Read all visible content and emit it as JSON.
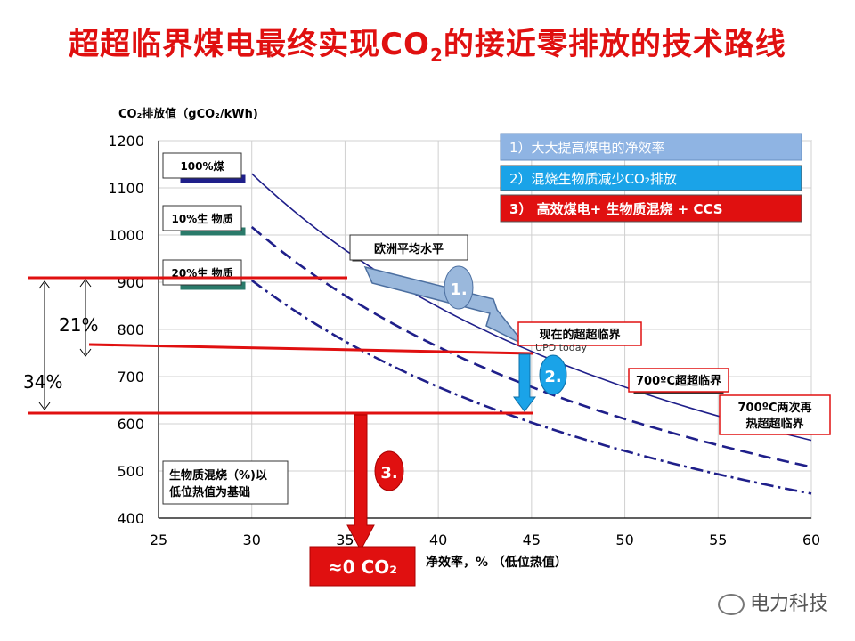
{
  "title": {
    "main": "超超临界煤电最终实现CO",
    "sub": "2",
    "tail": "的接近零排放的技术路线"
  },
  "chart_data": {
    "type": "line",
    "ylabel": "CO₂排放值（gCO₂/kWh)",
    "xlabel": "净效率，% （低位热值）",
    "xlim": [
      25,
      60
    ],
    "ylim": [
      400,
      1200
    ],
    "x_ticks": [
      "25",
      "30",
      "35",
      "40",
      "45",
      "50",
      "55",
      "60"
    ],
    "y_ticks": [
      "400",
      "500",
      "600",
      "700",
      "800",
      "900",
      "1000",
      "1100",
      "1200"
    ],
    "grid": true,
    "x": [
      30,
      35,
      40,
      45,
      50,
      55,
      60
    ],
    "series": [
      {
        "name": "100%煤",
        "style": "solid",
        "values": [
          1130,
          969,
          848,
          753,
          678,
          616,
          565
        ]
      },
      {
        "name": "10%生 物质",
        "style": "dashed",
        "values": [
          1017,
          872,
          763,
          678,
          610,
          555,
          508
        ]
      },
      {
        "name": "20%生 物质",
        "style": "dashdot",
        "values": [
          904,
          775,
          678,
          603,
          542,
          493,
          452
        ]
      }
    ],
    "annotations": {
      "europe_avg": "欧洲平均水平",
      "current_usc": "现在的超超临界",
      "usc_today": "UPD today",
      "usc700": "700ºC超超临界",
      "usc700_reheat_line1": "700ºC两次再",
      "usc700_reheat_line2": "热超超临界",
      "biomass_note_line1": "生物质混烧（%)以",
      "biomass_note_line2": "低位热值为基础",
      "pct21": "21%",
      "pct34": "34%",
      "step1": "1.",
      "step2": "2.",
      "step3": "3.",
      "zero_co2": "≈0 CO₂"
    },
    "legend_boxes": [
      {
        "text": "1）大大提高煤电的净效率",
        "color": "#8fb4e3"
      },
      {
        "text": "2）混烧生物质减少CO₂排放",
        "color": "#1aa3e8"
      },
      {
        "text": "3） 高效煤电+ 生物质混烧 + CCS",
        "color": "#e01010"
      }
    ]
  },
  "watermark": "电力科技",
  "colors": {
    "line": "#1f1f8a",
    "red": "#e01010"
  }
}
